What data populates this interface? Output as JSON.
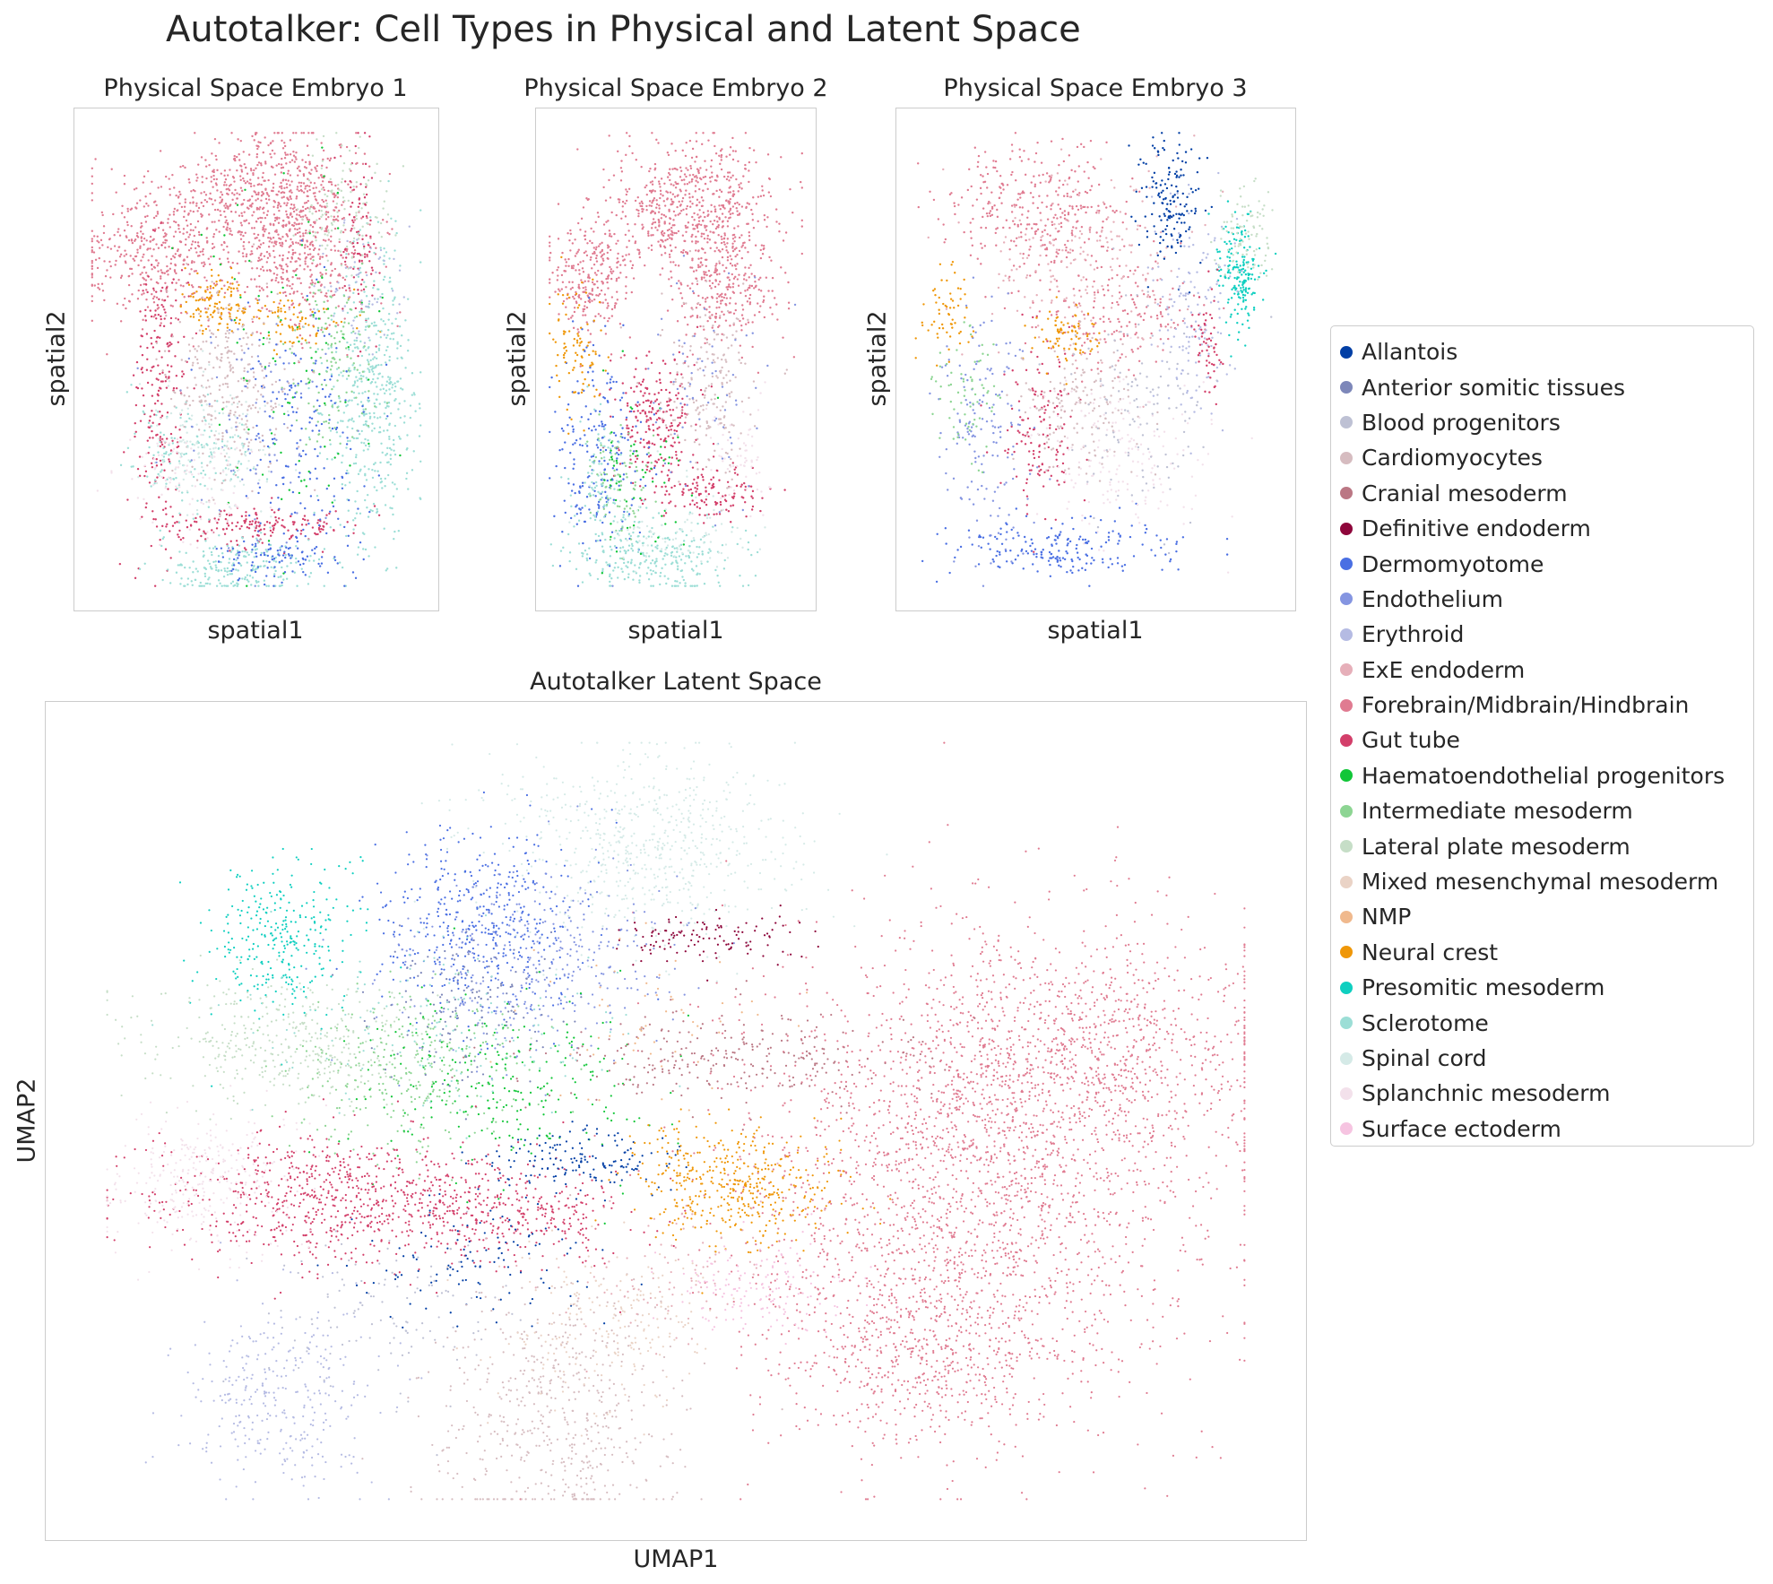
{
  "title": "Autotalker: Cell Types in Physical and Latent Space",
  "panels": {
    "embryo1": {
      "title": "Physical Space Embryo 1",
      "xlabel": "spatial1",
      "ylabel": "spatial2"
    },
    "embryo2": {
      "title": "Physical Space Embryo 2",
      "xlabel": "spatial1",
      "ylabel": "spatial2"
    },
    "embryo3": {
      "title": "Physical Space Embryo 3",
      "xlabel": "spatial1",
      "ylabel": "spatial2"
    },
    "latent": {
      "title": "Autotalker Latent Space",
      "xlabel": "UMAP1",
      "ylabel": "UMAP2"
    }
  },
  "legend": [
    {
      "label": "Allantois",
      "color": "#023fa5"
    },
    {
      "label": "Anterior somitic tissues",
      "color": "#7d87b9"
    },
    {
      "label": "Blood progenitors",
      "color": "#bec1d4"
    },
    {
      "label": "Cardiomyocytes",
      "color": "#d6bcc0"
    },
    {
      "label": "Cranial mesoderm",
      "color": "#bb7784"
    },
    {
      "label": "Definitive endoderm",
      "color": "#8e063b"
    },
    {
      "label": "Dermomyotome",
      "color": "#4a6fe3"
    },
    {
      "label": "Endothelium",
      "color": "#8595e1"
    },
    {
      "label": "Erythroid",
      "color": "#b5bbe3"
    },
    {
      "label": "ExE endoderm",
      "color": "#e6afb9"
    },
    {
      "label": "Forebrain/Midbrain/Hindbrain",
      "color": "#e07b91"
    },
    {
      "label": "Gut tube",
      "color": "#d33f6a"
    },
    {
      "label": "Haematoendothelial progenitors",
      "color": "#11c638"
    },
    {
      "label": "Intermediate mesoderm",
      "color": "#8dd593"
    },
    {
      "label": "Lateral plate mesoderm",
      "color": "#c6dec7"
    },
    {
      "label": "Mixed mesenchymal mesoderm",
      "color": "#ead3c6"
    },
    {
      "label": "NMP",
      "color": "#f0b98d"
    },
    {
      "label": "Neural crest",
      "color": "#ef9708"
    },
    {
      "label": "Presomitic mesoderm",
      "color": "#0fcfc0"
    },
    {
      "label": "Sclerotome",
      "color": "#9cded6"
    },
    {
      "label": "Spinal cord",
      "color": "#d5eae7"
    },
    {
      "label": "Splanchnic mesoderm",
      "color": "#f3e1eb"
    },
    {
      "label": "Surface ectoderm",
      "color": "#f6c4e1"
    }
  ],
  "chart_data": [
    {
      "type": "scatter",
      "title": "Physical Space Embryo 1",
      "xlabel": "spatial1",
      "ylabel": "spatial2",
      "ticks": false,
      "grid": false,
      "clusters": [
        {
          "type": "Forebrain/Midbrain/Hindbrain",
          "x": 0.62,
          "y": 0.78,
          "sx": 0.1,
          "sy": 0.1,
          "n": 700
        },
        {
          "type": "Forebrain/Midbrain/Hindbrain",
          "x": 0.22,
          "y": 0.72,
          "sx": 0.12,
          "sy": 0.07,
          "n": 420
        },
        {
          "type": "Forebrain/Midbrain/Hindbrain",
          "x": 0.45,
          "y": 0.86,
          "sx": 0.12,
          "sy": 0.05,
          "n": 280
        },
        {
          "type": "Gut tube",
          "x": 0.22,
          "y": 0.42,
          "sx": 0.04,
          "sy": 0.15,
          "n": 220
        },
        {
          "type": "Gut tube",
          "x": 0.5,
          "y": 0.15,
          "sx": 0.14,
          "sy": 0.02,
          "n": 180
        },
        {
          "type": "Gut tube",
          "x": 0.8,
          "y": 0.75,
          "sx": 0.03,
          "sy": 0.1,
          "n": 90
        },
        {
          "type": "Neural crest",
          "x": 0.38,
          "y": 0.62,
          "sx": 0.05,
          "sy": 0.03,
          "n": 120
        },
        {
          "type": "Neural crest",
          "x": 0.6,
          "y": 0.58,
          "sx": 0.08,
          "sy": 0.03,
          "n": 80
        },
        {
          "type": "Sclerotome",
          "x": 0.84,
          "y": 0.42,
          "sx": 0.07,
          "sy": 0.16,
          "n": 480
        },
        {
          "type": "Sclerotome",
          "x": 0.45,
          "y": 0.06,
          "sx": 0.12,
          "sy": 0.03,
          "n": 220
        },
        {
          "type": "Sclerotome",
          "x": 0.3,
          "y": 0.3,
          "sx": 0.1,
          "sy": 0.05,
          "n": 140
        },
        {
          "type": "Cardiomyocytes",
          "x": 0.42,
          "y": 0.45,
          "sx": 0.09,
          "sy": 0.1,
          "n": 300
        },
        {
          "type": "Dermomyotome",
          "x": 0.65,
          "y": 0.33,
          "sx": 0.1,
          "sy": 0.14,
          "n": 180
        },
        {
          "type": "Dermomyotome",
          "x": 0.55,
          "y": 0.08,
          "sx": 0.08,
          "sy": 0.02,
          "n": 90
        },
        {
          "type": "Intermediate mesoderm",
          "x": 0.72,
          "y": 0.5,
          "sx": 0.06,
          "sy": 0.1,
          "n": 140
        },
        {
          "type": "Lateral plate mesoderm",
          "x": 0.75,
          "y": 0.82,
          "sx": 0.07,
          "sy": 0.07,
          "n": 120
        },
        {
          "type": "Spinal cord",
          "x": 0.35,
          "y": 0.32,
          "sx": 0.1,
          "sy": 0.07,
          "n": 140
        },
        {
          "type": "Haematoendothelial progenitors",
          "x": 0.6,
          "y": 0.48,
          "sx": 0.12,
          "sy": 0.18,
          "n": 90
        },
        {
          "type": "Endothelium",
          "x": 0.5,
          "y": 0.4,
          "sx": 0.12,
          "sy": 0.12,
          "n": 90
        },
        {
          "type": "Splanchnic mesoderm",
          "x": 0.3,
          "y": 0.25,
          "sx": 0.1,
          "sy": 0.06,
          "n": 100
        },
        {
          "type": "Erythroid",
          "x": 0.8,
          "y": 0.65,
          "sx": 0.06,
          "sy": 0.08,
          "n": 60
        }
      ]
    },
    {
      "type": "scatter",
      "title": "Physical Space Embryo 2",
      "xlabel": "spatial1",
      "ylabel": "spatial2",
      "ticks": false,
      "grid": false,
      "clusters": [
        {
          "type": "Forebrain/Midbrain/Hindbrain",
          "x": 0.55,
          "y": 0.82,
          "sx": 0.16,
          "sy": 0.07,
          "n": 620
        },
        {
          "type": "Forebrain/Midbrain/Hindbrain",
          "x": 0.18,
          "y": 0.68,
          "sx": 0.08,
          "sy": 0.06,
          "n": 260
        },
        {
          "type": "Forebrain/Midbrain/Hindbrain",
          "x": 0.7,
          "y": 0.65,
          "sx": 0.1,
          "sy": 0.06,
          "n": 260
        },
        {
          "type": "Gut tube",
          "x": 0.42,
          "y": 0.36,
          "sx": 0.08,
          "sy": 0.08,
          "n": 240
        },
        {
          "type": "Gut tube",
          "x": 0.65,
          "y": 0.22,
          "sx": 0.1,
          "sy": 0.03,
          "n": 120
        },
        {
          "type": "Cardiomyocytes",
          "x": 0.62,
          "y": 0.45,
          "sx": 0.1,
          "sy": 0.1,
          "n": 200
        },
        {
          "type": "Dermomyotome",
          "x": 0.2,
          "y": 0.3,
          "sx": 0.08,
          "sy": 0.12,
          "n": 220
        },
        {
          "type": "Sclerotome",
          "x": 0.45,
          "y": 0.08,
          "sx": 0.16,
          "sy": 0.04,
          "n": 260
        },
        {
          "type": "Sclerotome",
          "x": 0.2,
          "y": 0.22,
          "sx": 0.06,
          "sy": 0.08,
          "n": 100
        },
        {
          "type": "Neural crest",
          "x": 0.12,
          "y": 0.52,
          "sx": 0.05,
          "sy": 0.08,
          "n": 90
        },
        {
          "type": "Intermediate mesoderm",
          "x": 0.28,
          "y": 0.24,
          "sx": 0.06,
          "sy": 0.06,
          "n": 80
        },
        {
          "type": "Haematoendothelial progenitors",
          "x": 0.35,
          "y": 0.25,
          "sx": 0.1,
          "sy": 0.1,
          "n": 60
        },
        {
          "type": "Endothelium",
          "x": 0.6,
          "y": 0.4,
          "sx": 0.12,
          "sy": 0.12,
          "n": 70
        },
        {
          "type": "Spinal cord",
          "x": 0.5,
          "y": 0.15,
          "sx": 0.14,
          "sy": 0.05,
          "n": 90
        },
        {
          "type": "Splanchnic mesoderm",
          "x": 0.75,
          "y": 0.3,
          "sx": 0.06,
          "sy": 0.06,
          "n": 60
        }
      ]
    },
    {
      "type": "scatter",
      "title": "Physical Space Embryo 3",
      "xlabel": "spatial1",
      "ylabel": "spatial2",
      "ticks": false,
      "grid": false,
      "clusters": [
        {
          "type": "Forebrain/Midbrain/Hindbrain",
          "x": 0.35,
          "y": 0.82,
          "sx": 0.12,
          "sy": 0.07,
          "n": 320
        },
        {
          "type": "Forebrain/Midbrain/Hindbrain",
          "x": 0.55,
          "y": 0.6,
          "sx": 0.1,
          "sy": 0.06,
          "n": 180
        },
        {
          "type": "ExE endoderm",
          "x": 0.45,
          "y": 0.7,
          "sx": 0.14,
          "sy": 0.1,
          "n": 220
        },
        {
          "type": "Allantois",
          "x": 0.7,
          "y": 0.83,
          "sx": 0.04,
          "sy": 0.07,
          "n": 160
        },
        {
          "type": "Presomitic mesoderm",
          "x": 0.88,
          "y": 0.68,
          "sx": 0.03,
          "sy": 0.06,
          "n": 180
        },
        {
          "type": "Lateral plate mesoderm",
          "x": 0.9,
          "y": 0.76,
          "sx": 0.04,
          "sy": 0.05,
          "n": 90
        },
        {
          "type": "Erythroid",
          "x": 0.76,
          "y": 0.6,
          "sx": 0.05,
          "sy": 0.12,
          "n": 150
        },
        {
          "type": "Gut tube",
          "x": 0.35,
          "y": 0.35,
          "sx": 0.05,
          "sy": 0.1,
          "n": 140
        },
        {
          "type": "Gut tube",
          "x": 0.8,
          "y": 0.52,
          "sx": 0.02,
          "sy": 0.06,
          "n": 60
        },
        {
          "type": "Neural crest",
          "x": 0.42,
          "y": 0.55,
          "sx": 0.05,
          "sy": 0.03,
          "n": 80
        },
        {
          "type": "Dermomyotome",
          "x": 0.4,
          "y": 0.1,
          "sx": 0.16,
          "sy": 0.03,
          "n": 200
        },
        {
          "type": "Endothelium",
          "x": 0.2,
          "y": 0.35,
          "sx": 0.06,
          "sy": 0.14,
          "n": 160
        },
        {
          "type": "Cardiomyocytes",
          "x": 0.45,
          "y": 0.4,
          "sx": 0.08,
          "sy": 0.08,
          "n": 160
        },
        {
          "type": "Splanchnic mesoderm",
          "x": 0.55,
          "y": 0.3,
          "sx": 0.12,
          "sy": 0.08,
          "n": 180
        },
        {
          "type": "Blood progenitors",
          "x": 0.62,
          "y": 0.4,
          "sx": 0.1,
          "sy": 0.1,
          "n": 120
        },
        {
          "type": "Intermediate mesoderm",
          "x": 0.15,
          "y": 0.45,
          "sx": 0.05,
          "sy": 0.08,
          "n": 70
        },
        {
          "type": "Neural crest",
          "x": 0.1,
          "y": 0.6,
          "sx": 0.04,
          "sy": 0.05,
          "n": 60
        }
      ]
    },
    {
      "type": "scatter",
      "title": "Autotalker Latent Space",
      "xlabel": "UMAP1",
      "ylabel": "UMAP2",
      "ticks": false,
      "grid": false,
      "clusters": [
        {
          "type": "Forebrain/Midbrain/Hindbrain",
          "x": 0.75,
          "y": 0.42,
          "sx": 0.1,
          "sy": 0.16,
          "n": 2200
        },
        {
          "type": "Forebrain/Midbrain/Hindbrain",
          "x": 0.85,
          "y": 0.58,
          "sx": 0.08,
          "sy": 0.08,
          "n": 900
        },
        {
          "type": "Forebrain/Midbrain/Hindbrain",
          "x": 0.7,
          "y": 0.22,
          "sx": 0.06,
          "sy": 0.07,
          "n": 500
        },
        {
          "type": "Spinal cord",
          "x": 0.48,
          "y": 0.85,
          "sx": 0.06,
          "sy": 0.06,
          "n": 650
        },
        {
          "type": "Dermomyotome",
          "x": 0.34,
          "y": 0.75,
          "sx": 0.04,
          "sy": 0.06,
          "n": 450
        },
        {
          "type": "Endothelium",
          "x": 0.38,
          "y": 0.7,
          "sx": 0.06,
          "sy": 0.06,
          "n": 350
        },
        {
          "type": "Presomitic mesoderm",
          "x": 0.17,
          "y": 0.73,
          "sx": 0.03,
          "sy": 0.05,
          "n": 300
        },
        {
          "type": "Lateral plate mesoderm",
          "x": 0.17,
          "y": 0.6,
          "sx": 0.06,
          "sy": 0.04,
          "n": 400
        },
        {
          "type": "Intermediate mesoderm",
          "x": 0.28,
          "y": 0.56,
          "sx": 0.05,
          "sy": 0.05,
          "n": 300
        },
        {
          "type": "Haematoendothelial progenitors",
          "x": 0.35,
          "y": 0.55,
          "sx": 0.06,
          "sy": 0.06,
          "n": 260
        },
        {
          "type": "Gut tube",
          "x": 0.22,
          "y": 0.4,
          "sx": 0.08,
          "sy": 0.04,
          "n": 800
        },
        {
          "type": "Gut tube",
          "x": 0.37,
          "y": 0.38,
          "sx": 0.05,
          "sy": 0.03,
          "n": 250
        },
        {
          "type": "Allantois",
          "x": 0.42,
          "y": 0.45,
          "sx": 0.04,
          "sy": 0.02,
          "n": 160
        },
        {
          "type": "Allantois",
          "x": 0.33,
          "y": 0.32,
          "sx": 0.05,
          "sy": 0.04,
          "n": 120
        },
        {
          "type": "Splanchnic mesoderm",
          "x": 0.1,
          "y": 0.42,
          "sx": 0.04,
          "sy": 0.05,
          "n": 300
        },
        {
          "type": "Erythroid",
          "x": 0.16,
          "y": 0.15,
          "sx": 0.04,
          "sy": 0.06,
          "n": 320
        },
        {
          "type": "Cardiomyocytes",
          "x": 0.4,
          "y": 0.13,
          "sx": 0.05,
          "sy": 0.08,
          "n": 550
        },
        {
          "type": "Mixed mesenchymal mesoderm",
          "x": 0.44,
          "y": 0.24,
          "sx": 0.05,
          "sy": 0.05,
          "n": 220
        },
        {
          "type": "Neural crest",
          "x": 0.55,
          "y": 0.42,
          "sx": 0.04,
          "sy": 0.04,
          "n": 450
        },
        {
          "type": "Cranial mesoderm",
          "x": 0.55,
          "y": 0.58,
          "sx": 0.08,
          "sy": 0.03,
          "n": 280
        },
        {
          "type": "Definitive endoderm",
          "x": 0.52,
          "y": 0.73,
          "sx": 0.04,
          "sy": 0.015,
          "n": 120
        },
        {
          "type": "Surface ectoderm",
          "x": 0.57,
          "y": 0.29,
          "sx": 0.04,
          "sy": 0.03,
          "n": 150
        },
        {
          "type": "Anterior somitic tissues",
          "x": 0.32,
          "y": 0.65,
          "sx": 0.04,
          "sy": 0.05,
          "n": 150
        },
        {
          "type": "Sclerotome",
          "x": 0.3,
          "y": 0.62,
          "sx": 0.08,
          "sy": 0.06,
          "n": 150
        },
        {
          "type": "Blood progenitors",
          "x": 0.25,
          "y": 0.25,
          "sx": 0.05,
          "sy": 0.05,
          "n": 120
        },
        {
          "type": "ExE endoderm",
          "x": 0.5,
          "y": 0.3,
          "sx": 0.05,
          "sy": 0.05,
          "n": 100
        },
        {
          "type": "NMP",
          "x": 0.48,
          "y": 0.62,
          "sx": 0.05,
          "sy": 0.05,
          "n": 60
        }
      ]
    }
  ]
}
